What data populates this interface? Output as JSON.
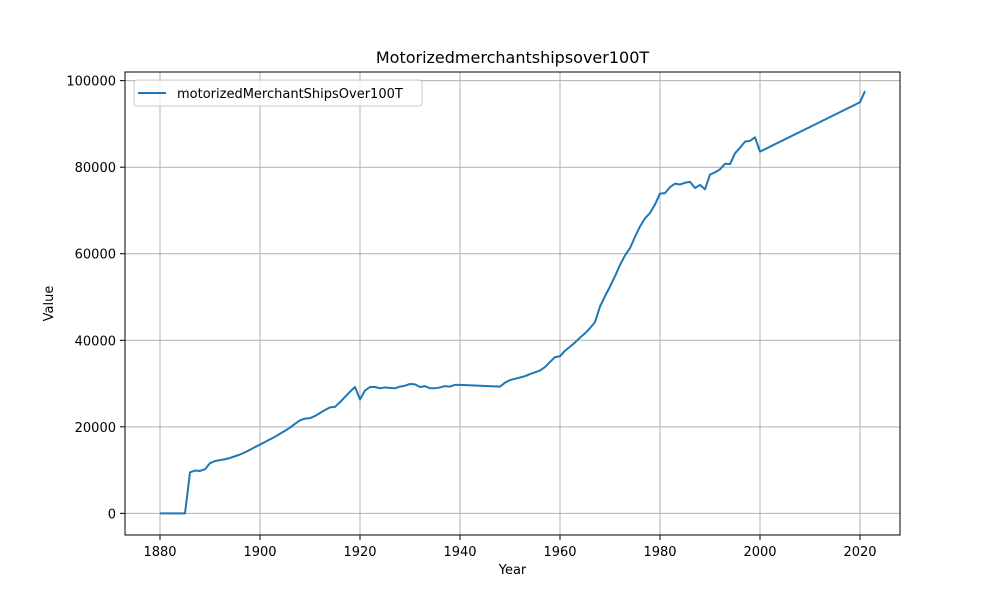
{
  "chart_data": {
    "type": "line",
    "title": "Motorizedmerchantshipsover100T",
    "xlabel": "Year",
    "ylabel": "Value",
    "xlim": [
      1873,
      2028
    ],
    "ylim": [
      -5000,
      102000
    ],
    "xticks": [
      1880,
      1900,
      1920,
      1940,
      1960,
      1980,
      2000,
      2020
    ],
    "yticks": [
      0,
      20000,
      40000,
      60000,
      80000,
      100000
    ],
    "grid": true,
    "legend": "top-left",
    "colors": {
      "series": "#1f77b4",
      "grid": "#b0b0b0"
    },
    "series": [
      {
        "name": "motorizedMerchantShipsOver100T",
        "x": [
          1880,
          1881,
          1882,
          1883,
          1884,
          1885,
          1886,
          1887,
          1888,
          1889,
          1890,
          1891,
          1892,
          1893,
          1894,
          1895,
          1896,
          1897,
          1898,
          1899,
          1900,
          1901,
          1902,
          1903,
          1904,
          1905,
          1906,
          1907,
          1908,
          1909,
          1910,
          1911,
          1912,
          1913,
          1914,
          1915,
          1916,
          1917,
          1918,
          1919,
          1920,
          1921,
          1922,
          1923,
          1924,
          1925,
          1926,
          1927,
          1928,
          1929,
          1930,
          1931,
          1932,
          1933,
          1934,
          1935,
          1936,
          1937,
          1938,
          1939,
          1940,
          1948,
          1949,
          1950,
          1951,
          1952,
          1953,
          1954,
          1955,
          1956,
          1957,
          1958,
          1959,
          1960,
          1961,
          1962,
          1963,
          1964,
          1965,
          1966,
          1967,
          1968,
          1969,
          1970,
          1971,
          1972,
          1973,
          1974,
          1975,
          1976,
          1977,
          1978,
          1979,
          1980,
          1981,
          1982,
          1983,
          1984,
          1985,
          1986,
          1987,
          1988,
          1989,
          1990,
          1991,
          1992,
          1993,
          1994,
          1995,
          1996,
          1997,
          1998,
          1999,
          2000,
          2020,
          2021
        ],
        "values": [
          0,
          0,
          0,
          0,
          0,
          0,
          9500,
          9900,
          9800,
          10200,
          11600,
          12100,
          12300,
          12500,
          12800,
          13200,
          13600,
          14100,
          14700,
          15300,
          15900,
          16500,
          17100,
          17700,
          18400,
          19100,
          19800,
          20700,
          21500,
          21900,
          22000,
          22500,
          23200,
          23900,
          24500,
          24600,
          25700,
          26900,
          28100,
          29200,
          26300,
          28400,
          29200,
          29200,
          28900,
          29100,
          29000,
          28900,
          29300,
          29500,
          29900,
          29800,
          29200,
          29400,
          28900,
          28900,
          29100,
          29400,
          29300,
          29700,
          29700,
          29300,
          30200,
          30800,
          31100,
          31400,
          31700,
          32200,
          32600,
          33000,
          33800,
          35000,
          36100,
          36300,
          37600,
          38500,
          39500,
          40600,
          41600,
          42800,
          44200,
          47800,
          50200,
          52400,
          54800,
          57400,
          59600,
          61300,
          63900,
          66300,
          68200,
          69400,
          71400,
          73900,
          74000,
          75400,
          76200,
          76000,
          76400,
          76600,
          75200,
          75900,
          74900,
          78300,
          78800,
          79500,
          80800,
          80700,
          83200,
          84500,
          85900,
          86100,
          86900,
          83600,
          95000,
          97600
        ]
      }
    ]
  }
}
